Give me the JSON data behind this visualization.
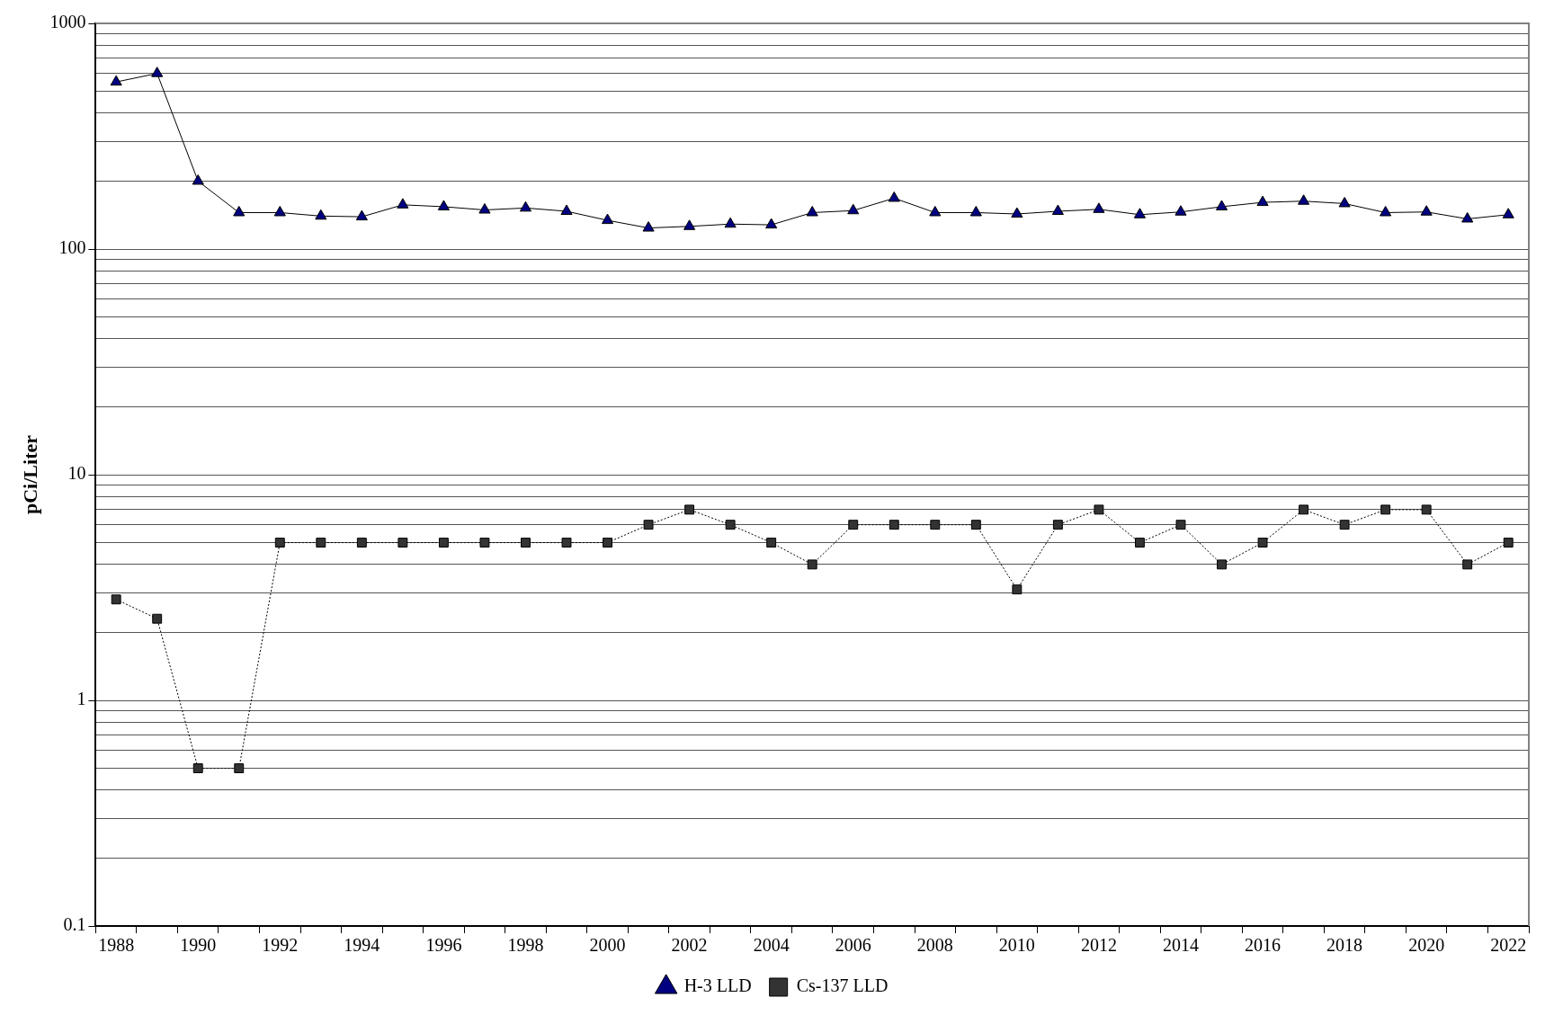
{
  "chart_data": {
    "type": "line",
    "ylabel": "pCi/Liter",
    "categories": [
      "1988",
      null,
      "1990",
      null,
      "1992",
      null,
      "1994",
      null,
      "1996",
      null,
      "1998",
      null,
      "2000",
      null,
      "2002",
      null,
      "2004",
      null,
      "2006",
      null,
      "2008",
      null,
      "2010",
      null,
      "2012",
      null,
      "2014",
      null,
      "2016",
      null,
      "2018",
      null,
      "2020",
      null,
      "2022"
    ],
    "series": [
      {
        "name": "H-3 LLD",
        "color": "#000080",
        "marker": "triangle",
        "line_style": "solid",
        "values": [
          550,
          600,
          200,
          145,
          145,
          140,
          139,
          157,
          154,
          149,
          152,
          147,
          134,
          124,
          126,
          129,
          128,
          145,
          148,
          168,
          145,
          145,
          143,
          147,
          150,
          142,
          146,
          154,
          161,
          163,
          159,
          145,
          146,
          136,
          142
        ]
      },
      {
        "name": "Cs-137 LLD",
        "color": "#333333",
        "marker": "square",
        "line_style": "dotted",
        "values": [
          2.8,
          2.3,
          0.5,
          0.5,
          5,
          5,
          5,
          5,
          5,
          5,
          5,
          5,
          5,
          6,
          7,
          6,
          5,
          4,
          6,
          6,
          6,
          6,
          3.1,
          6,
          7,
          5,
          6,
          4,
          5,
          7,
          6,
          7,
          7,
          4,
          5
        ]
      }
    ],
    "log": "y",
    "ylim": [
      0.1,
      1000
    ],
    "yticks": [
      0.1,
      {
        "value": 0.2,
        "label": null
      },
      {
        "value": 0.3,
        "label": null
      },
      {
        "value": 0.4,
        "label": null
      },
      {
        "value": 0.5,
        "label": null
      },
      {
        "value": 0.6,
        "label": null
      },
      {
        "value": 0.7,
        "label": null
      },
      {
        "value": 0.8,
        "label": null
      },
      {
        "value": 0.9,
        "label": null
      },
      1,
      {
        "value": 2,
        "label": null
      },
      {
        "value": 3,
        "label": null
      },
      {
        "value": 4,
        "label": null
      },
      {
        "value": 5,
        "label": null
      },
      {
        "value": 6,
        "label": null
      },
      {
        "value": 7,
        "label": null
      },
      {
        "value": 8,
        "label": null
      },
      {
        "value": 9,
        "label": null
      },
      10,
      {
        "value": 20,
        "label": null
      },
      {
        "value": 30,
        "label": null
      },
      {
        "value": 40,
        "label": null
      },
      {
        "value": 50,
        "label": null
      },
      {
        "value": 60,
        "label": null
      },
      {
        "value": 70,
        "label": null
      },
      {
        "value": 80,
        "label": null
      },
      {
        "value": 90,
        "label": null
      },
      100,
      {
        "value": 200,
        "label": null
      },
      {
        "value": 300,
        "label": null
      },
      {
        "value": 400,
        "label": null
      },
      {
        "value": 500,
        "label": null
      },
      {
        "value": 600,
        "label": null
      },
      {
        "value": 700,
        "label": null
      },
      {
        "value": 800,
        "label": null
      },
      {
        "value": 900,
        "label": null
      },
      1000
    ],
    "grid": "y",
    "legend": "bottom"
  }
}
